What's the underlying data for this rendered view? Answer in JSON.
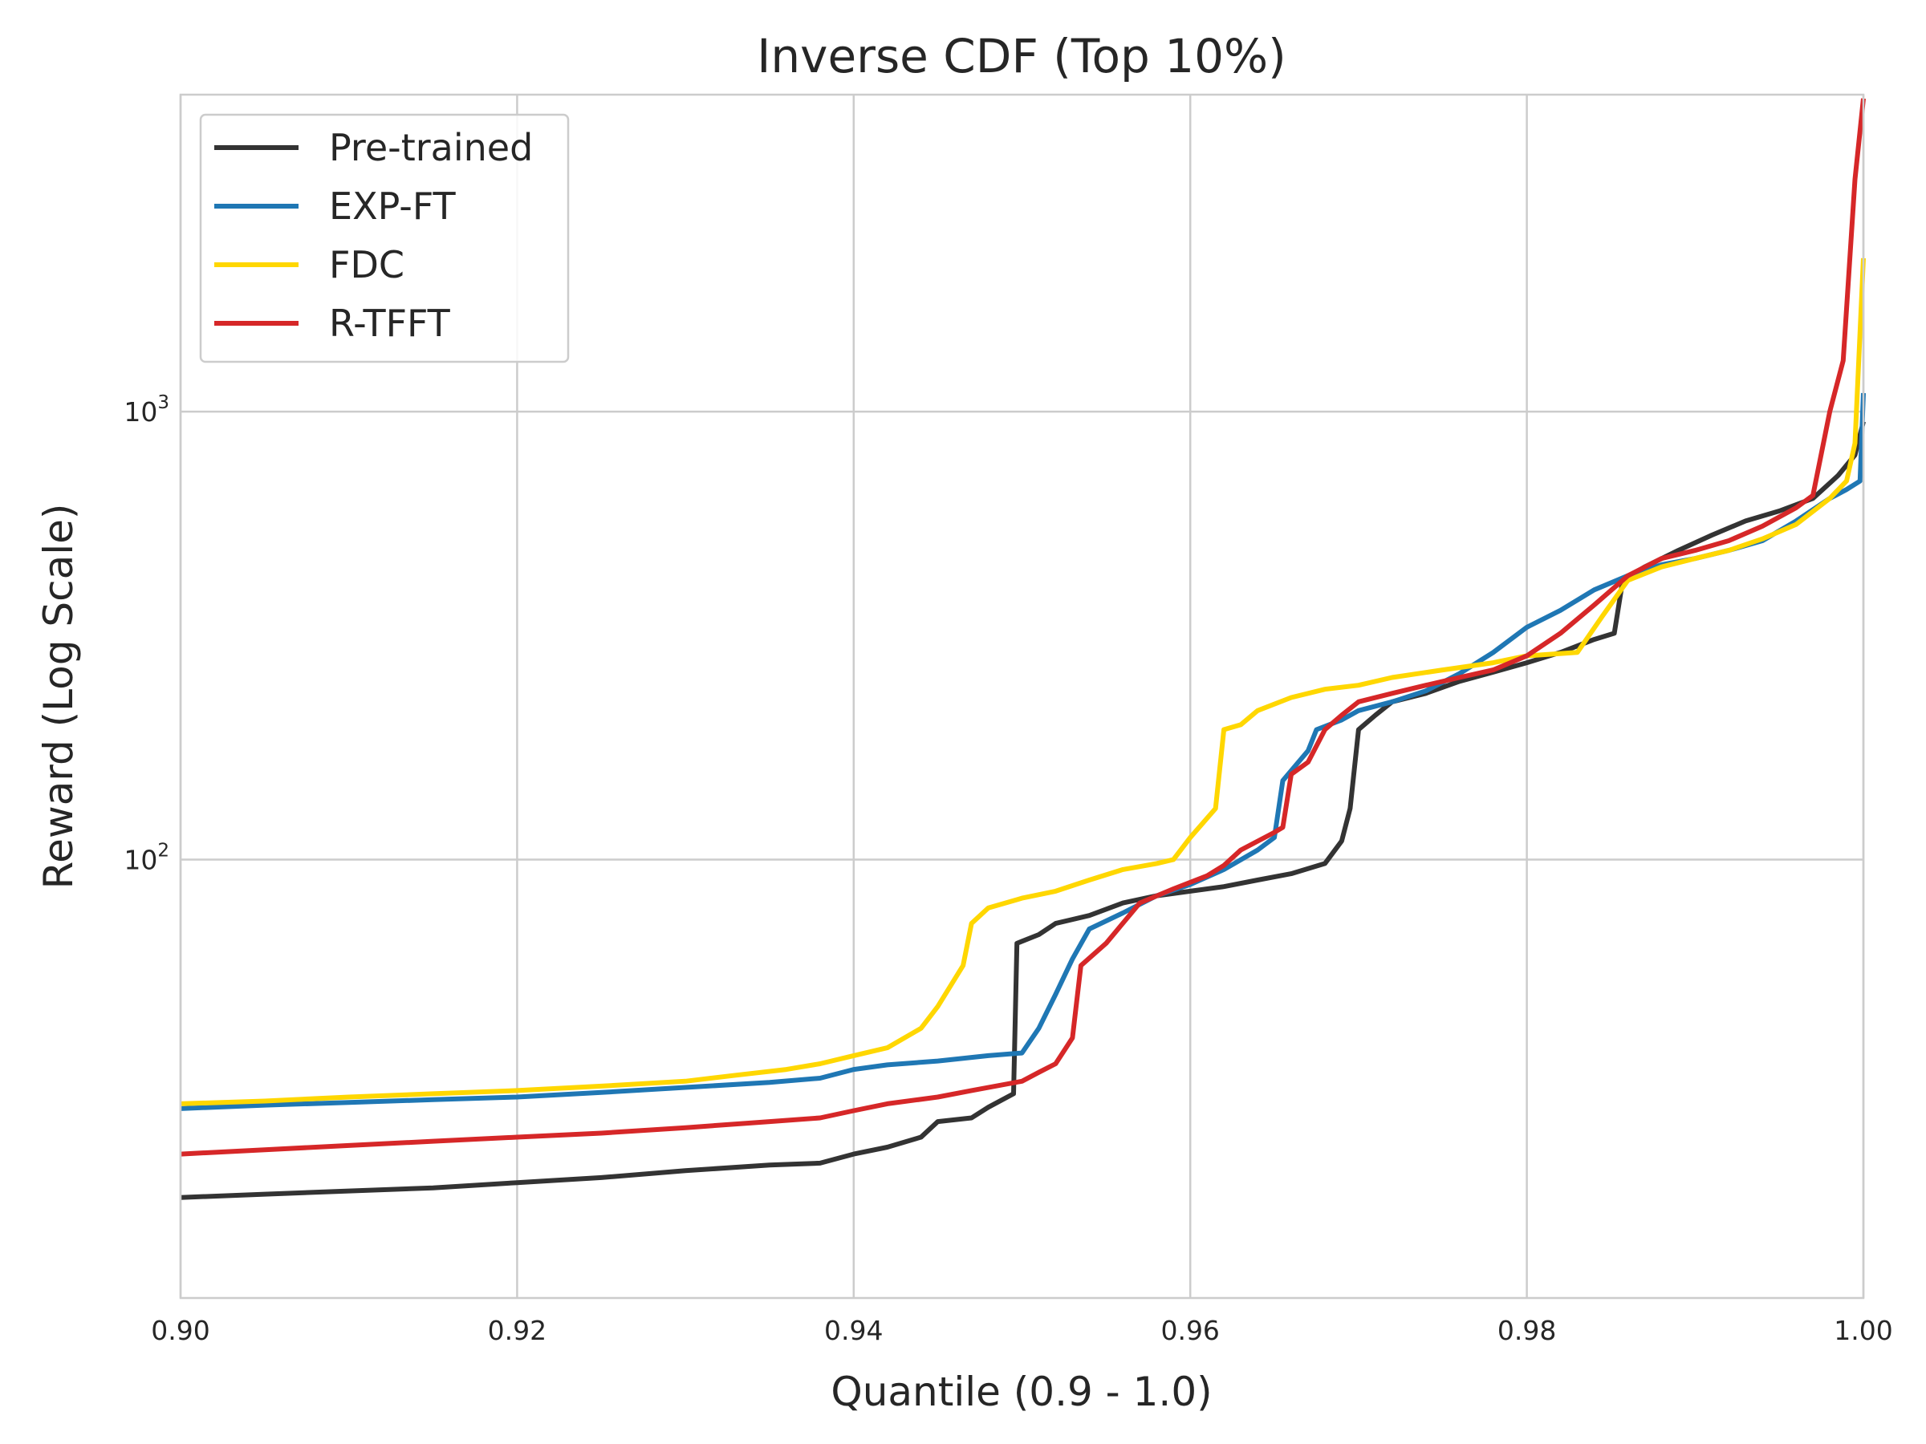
{
  "chart_data": {
    "type": "line",
    "title": "Inverse CDF (Top 10%)",
    "xlabel": "Quantile (0.9 - 1.0)",
    "ylabel": "Reward (Log Scale)",
    "xlim": [
      0.9,
      1.0
    ],
    "ylim": [
      10.5,
      5100
    ],
    "yscale": "log",
    "grid": true,
    "legend_position": "top-left",
    "x_ticks": [
      {
        "value": 0.9,
        "label": "0.90"
      },
      {
        "value": 0.92,
        "label": "0.92"
      },
      {
        "value": 0.94,
        "label": "0.94"
      },
      {
        "value": 0.96,
        "label": "0.96"
      },
      {
        "value": 0.98,
        "label": "0.98"
      },
      {
        "value": 1.0,
        "label": "1.00"
      }
    ],
    "y_ticks": [
      {
        "value": 100,
        "base": "10",
        "exp": "2"
      },
      {
        "value": 1000,
        "base": "10",
        "exp": "3"
      }
    ],
    "series": [
      {
        "name": "Pre-trained",
        "color": "#333333",
        "points": [
          [
            0.9,
            17.6
          ],
          [
            0.905,
            17.9
          ],
          [
            0.91,
            18.2
          ],
          [
            0.915,
            18.5
          ],
          [
            0.92,
            19.0
          ],
          [
            0.925,
            19.5
          ],
          [
            0.93,
            20.2
          ],
          [
            0.935,
            20.8
          ],
          [
            0.938,
            21.0
          ],
          [
            0.94,
            22.0
          ],
          [
            0.942,
            22.8
          ],
          [
            0.944,
            24.0
          ],
          [
            0.945,
            26.0
          ],
          [
            0.947,
            26.5
          ],
          [
            0.948,
            28.0
          ],
          [
            0.9495,
            30.0
          ],
          [
            0.9497,
            65.0
          ],
          [
            0.951,
            68.0
          ],
          [
            0.952,
            72.0
          ],
          [
            0.954,
            75.0
          ],
          [
            0.956,
            80.0
          ],
          [
            0.958,
            83.0
          ],
          [
            0.96,
            85.0
          ],
          [
            0.962,
            87.0
          ],
          [
            0.964,
            90.0
          ],
          [
            0.966,
            93.0
          ],
          [
            0.968,
            98.0
          ],
          [
            0.969,
            110.0
          ],
          [
            0.9695,
            130.0
          ],
          [
            0.97,
            195.0
          ],
          [
            0.971,
            210.0
          ],
          [
            0.972,
            225.0
          ],
          [
            0.974,
            235.0
          ],
          [
            0.976,
            250.0
          ],
          [
            0.978,
            262.0
          ],
          [
            0.98,
            275.0
          ],
          [
            0.982,
            290.0
          ],
          [
            0.984,
            310.0
          ],
          [
            0.9852,
            320.0
          ],
          [
            0.9857,
            420.0
          ],
          [
            0.987,
            450.0
          ],
          [
            0.989,
            490.0
          ],
          [
            0.991,
            530.0
          ],
          [
            0.993,
            570.0
          ],
          [
            0.995,
            600.0
          ],
          [
            0.997,
            640.0
          ],
          [
            0.9985,
            720.0
          ],
          [
            0.9995,
            800.0
          ],
          [
            1.0,
            950.0
          ]
        ]
      },
      {
        "name": "EXP-FT",
        "color": "#1f77b4",
        "points": [
          [
            0.9,
            27.8
          ],
          [
            0.905,
            28.3
          ],
          [
            0.91,
            28.7
          ],
          [
            0.915,
            29.1
          ],
          [
            0.92,
            29.5
          ],
          [
            0.925,
            30.2
          ],
          [
            0.93,
            31.0
          ],
          [
            0.935,
            31.8
          ],
          [
            0.938,
            32.5
          ],
          [
            0.94,
            34.0
          ],
          [
            0.942,
            34.8
          ],
          [
            0.945,
            35.5
          ],
          [
            0.948,
            36.5
          ],
          [
            0.95,
            37.0
          ],
          [
            0.951,
            42.0
          ],
          [
            0.952,
            50.0
          ],
          [
            0.953,
            60.0
          ],
          [
            0.954,
            70.0
          ],
          [
            0.956,
            76.0
          ],
          [
            0.958,
            83.0
          ],
          [
            0.96,
            88.0
          ],
          [
            0.962,
            95.0
          ],
          [
            0.964,
            105.0
          ],
          [
            0.965,
            112.0
          ],
          [
            0.9655,
            150.0
          ],
          [
            0.967,
            175.0
          ],
          [
            0.9675,
            195.0
          ],
          [
            0.969,
            205.0
          ],
          [
            0.97,
            215.0
          ],
          [
            0.972,
            225.0
          ],
          [
            0.974,
            238.0
          ],
          [
            0.976,
            260.0
          ],
          [
            0.978,
            290.0
          ],
          [
            0.98,
            330.0
          ],
          [
            0.982,
            360.0
          ],
          [
            0.984,
            400.0
          ],
          [
            0.986,
            430.0
          ],
          [
            0.988,
            455.0
          ],
          [
            0.99,
            470.0
          ],
          [
            0.992,
            490.0
          ],
          [
            0.994,
            515.0
          ],
          [
            0.996,
            570.0
          ],
          [
            0.998,
            640.0
          ],
          [
            0.999,
            670.0
          ],
          [
            0.9998,
            700.0
          ],
          [
            1.0,
            1100.0
          ]
        ]
      },
      {
        "name": "FDC",
        "color": "#ffd700",
        "points": [
          [
            0.9,
            28.5
          ],
          [
            0.905,
            28.9
          ],
          [
            0.91,
            29.5
          ],
          [
            0.915,
            30.0
          ],
          [
            0.92,
            30.5
          ],
          [
            0.925,
            31.2
          ],
          [
            0.93,
            32.0
          ],
          [
            0.933,
            33.0
          ],
          [
            0.936,
            34.0
          ],
          [
            0.938,
            35.0
          ],
          [
            0.94,
            36.5
          ],
          [
            0.942,
            38.0
          ],
          [
            0.944,
            42.0
          ],
          [
            0.945,
            47.0
          ],
          [
            0.9465,
            58.0
          ],
          [
            0.947,
            72.0
          ],
          [
            0.948,
            78.0
          ],
          [
            0.95,
            82.0
          ],
          [
            0.952,
            85.0
          ],
          [
            0.954,
            90.0
          ],
          [
            0.956,
            95.0
          ],
          [
            0.958,
            98.0
          ],
          [
            0.959,
            100.0
          ],
          [
            0.96,
            112.0
          ],
          [
            0.9615,
            130.0
          ],
          [
            0.962,
            195.0
          ],
          [
            0.963,
            200.0
          ],
          [
            0.964,
            215.0
          ],
          [
            0.966,
            230.0
          ],
          [
            0.968,
            240.0
          ],
          [
            0.97,
            245.0
          ],
          [
            0.972,
            255.0
          ],
          [
            0.975,
            265.0
          ],
          [
            0.978,
            275.0
          ],
          [
            0.98,
            285.0
          ],
          [
            0.983,
            290.0
          ],
          [
            0.9845,
            350.0
          ],
          [
            0.986,
            420.0
          ],
          [
            0.988,
            450.0
          ],
          [
            0.99,
            470.0
          ],
          [
            0.992,
            490.0
          ],
          [
            0.994,
            520.0
          ],
          [
            0.996,
            560.0
          ],
          [
            0.998,
            640.0
          ],
          [
            0.999,
            700.0
          ],
          [
            0.9995,
            850.0
          ],
          [
            1.0,
            2200.0
          ]
        ]
      },
      {
        "name": "R-TFFT",
        "color": "#d62728",
        "points": [
          [
            0.9,
            22.0
          ],
          [
            0.905,
            22.5
          ],
          [
            0.91,
            23.0
          ],
          [
            0.915,
            23.5
          ],
          [
            0.92,
            24.0
          ],
          [
            0.925,
            24.5
          ],
          [
            0.93,
            25.2
          ],
          [
            0.935,
            26.0
          ],
          [
            0.938,
            26.5
          ],
          [
            0.94,
            27.5
          ],
          [
            0.942,
            28.5
          ],
          [
            0.945,
            29.5
          ],
          [
            0.947,
            30.5
          ],
          [
            0.95,
            32.0
          ],
          [
            0.951,
            33.5
          ],
          [
            0.952,
            35.0
          ],
          [
            0.953,
            40.0
          ],
          [
            0.9535,
            58.0
          ],
          [
            0.955,
            65.0
          ],
          [
            0.957,
            80.0
          ],
          [
            0.959,
            86.0
          ],
          [
            0.961,
            92.0
          ],
          [
            0.962,
            97.0
          ],
          [
            0.963,
            105.0
          ],
          [
            0.965,
            115.0
          ],
          [
            0.9655,
            118.0
          ],
          [
            0.966,
            155.0
          ],
          [
            0.967,
            165.0
          ],
          [
            0.968,
            195.0
          ],
          [
            0.969,
            210.0
          ],
          [
            0.97,
            225.0
          ],
          [
            0.972,
            235.0
          ],
          [
            0.974,
            245.0
          ],
          [
            0.976,
            255.0
          ],
          [
            0.978,
            265.0
          ],
          [
            0.98,
            285.0
          ],
          [
            0.982,
            320.0
          ],
          [
            0.984,
            370.0
          ],
          [
            0.986,
            430.0
          ],
          [
            0.988,
            470.0
          ],
          [
            0.99,
            490.0
          ],
          [
            0.992,
            515.0
          ],
          [
            0.994,
            555.0
          ],
          [
            0.996,
            610.0
          ],
          [
            0.997,
            650.0
          ],
          [
            0.998,
            1000.0
          ],
          [
            0.9988,
            1300.0
          ],
          [
            0.9995,
            3300.0
          ],
          [
            1.0,
            5000.0
          ]
        ]
      }
    ]
  }
}
